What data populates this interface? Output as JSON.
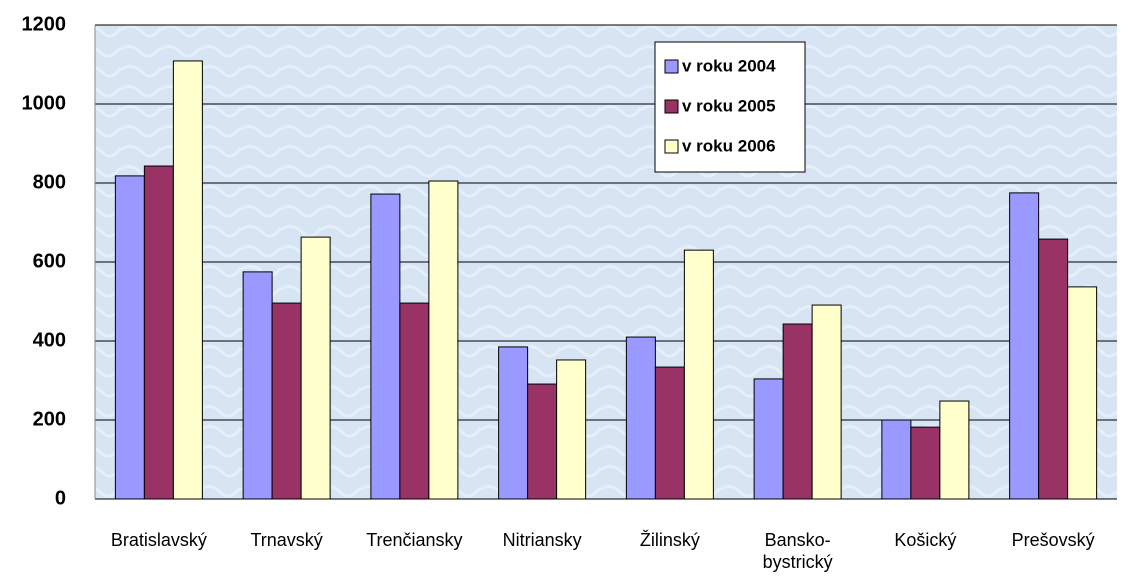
{
  "chart_data": {
    "type": "bar",
    "categories": [
      "Bratislavský",
      "Trnavský",
      "Trenčiansky",
      "Nitriansky",
      "Žilinský",
      "Bansko-\nbystrický",
      "Košický",
      "Prešovský"
    ],
    "series": [
      {
        "name": "v roku 2004",
        "color": "#9999ff",
        "values": [
          818,
          575,
          772,
          385,
          410,
          304,
          200,
          775
        ]
      },
      {
        "name": "v roku 2005",
        "color": "#993366",
        "values": [
          843,
          496,
          496,
          291,
          334,
          443,
          182,
          658
        ]
      },
      {
        "name": "v roku 2006",
        "color": "#ffffcc",
        "values": [
          1109,
          663,
          805,
          352,
          630,
          491,
          248,
          537
        ]
      }
    ],
    "ylim": [
      0,
      1200
    ],
    "yticks": [
      0,
      200,
      400,
      600,
      800,
      1000,
      1200
    ],
    "grid": true,
    "legend": "top-right"
  }
}
